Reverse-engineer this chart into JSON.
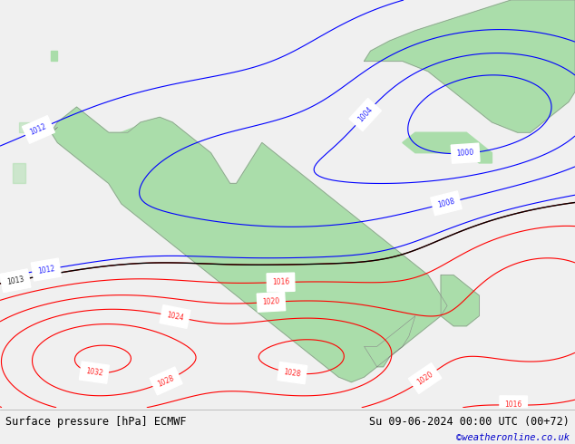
{
  "title_left": "Surface pressure [hPa] ECMWF",
  "title_right": "Su 09-06-2024 00:00 UTC (00+72)",
  "credit": "©weatheronline.co.uk",
  "bg_map_color": "#c8c8c8",
  "land_color": "#aaddaa",
  "sea_color": "#c8c8c8",
  "figure_width": 6.34,
  "figure_height": 4.9,
  "dpi": 100,
  "bottom_bar_height": 0.082,
  "bottom_bar_color": "#f0f0f0",
  "title_fontsize": 8.5,
  "credit_fontsize": 7.5,
  "credit_color": "#0000cc",
  "map_extent": [
    -25,
    65,
    -40,
    40
  ]
}
